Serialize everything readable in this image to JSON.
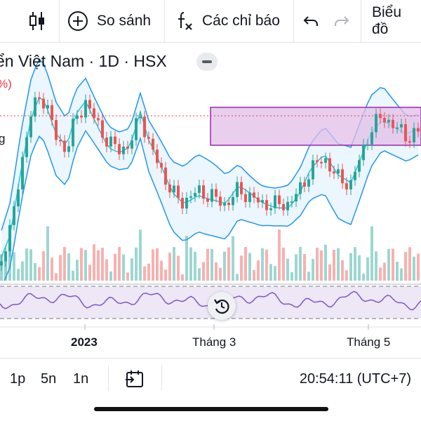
{
  "toolbar": {
    "compare_label": "So sánh",
    "indicators_label": "Các chỉ báo",
    "chart_type_label": "Biểu đồ"
  },
  "symbol": {
    "full_text": "ển Việt Nam · 1D · HSX",
    "name": "ển Việt Nam",
    "interval": "1D",
    "exchange": "HSX"
  },
  "overlay_texts": {
    "pct_fragment": "%)",
    "letter_fragment": "g"
  },
  "time_axis": {
    "labels": [
      "2023",
      "Tháng 3",
      "Tháng 5"
    ]
  },
  "bottom_bar": {
    "intervals": [
      "1p",
      "5n",
      "1n"
    ],
    "clock": "20:54:11 (UTC+7)"
  },
  "colors": {
    "up": "#26a69a",
    "down": "#ef5350",
    "band": "#2196f3",
    "ma": "#26c6da",
    "box_fill": "#e1bee7",
    "box_border": "#9c27b0",
    "rsi_line": "#7e57c2",
    "rsi_fill": "#ede7f6"
  },
  "icons": {
    "candles": "candlestick-icon",
    "compare": "plus-circle-icon",
    "indicators": "fx-icon",
    "undo": "undo-icon",
    "redo": "redo-icon",
    "date_range": "calendar-range-icon",
    "reset": "reset-icon"
  }
}
